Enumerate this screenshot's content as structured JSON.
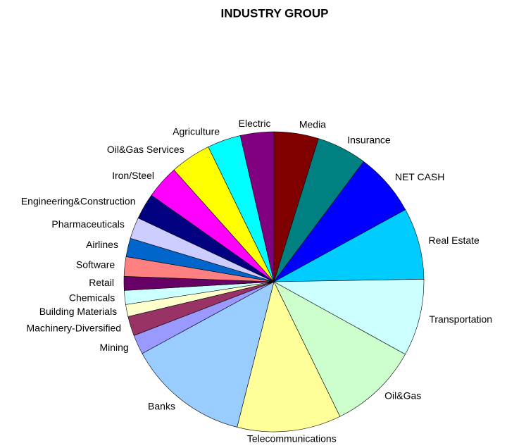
{
  "chart_data": {
    "type": "pie",
    "title": "INDUSTRY GROUP",
    "categories": [
      "Media",
      "Insurance",
      "NET CASH",
      "Real Estate",
      "Transportation",
      "Oil&Gas",
      "Telecommunications",
      "Banks",
      "Mining",
      "Machinery-Diversified",
      "Building Materials",
      "Chemicals",
      "Retail",
      "Software",
      "Airlines",
      "Pharmaceuticals",
      "Engineering&Construction",
      "Iron/Steel",
      "Oil&Gas Services",
      "Agriculture",
      "Electric"
    ],
    "values": [
      4.8,
      5.4,
      6.8,
      7.7,
      8.3,
      9.7,
      11.2,
      13.1,
      2.1,
      2.1,
      1.3,
      1.5,
      1.5,
      2.1,
      2.0,
      2.3,
      2.8,
      3.6,
      4.4,
      3.6,
      3.6
    ],
    "colors": [
      "#800000",
      "#008080",
      "#0000ff",
      "#00ccff",
      "#ccffff",
      "#ccffcc",
      "#ffff99",
      "#99ccff",
      "#9999ff",
      "#993366",
      "#ffffcc",
      "#ccffff",
      "#660066",
      "#ff8080",
      "#0066cc",
      "#ccccff",
      "#000080",
      "#ff00ff",
      "#ffff00",
      "#00ffff",
      "#800080"
    ]
  }
}
